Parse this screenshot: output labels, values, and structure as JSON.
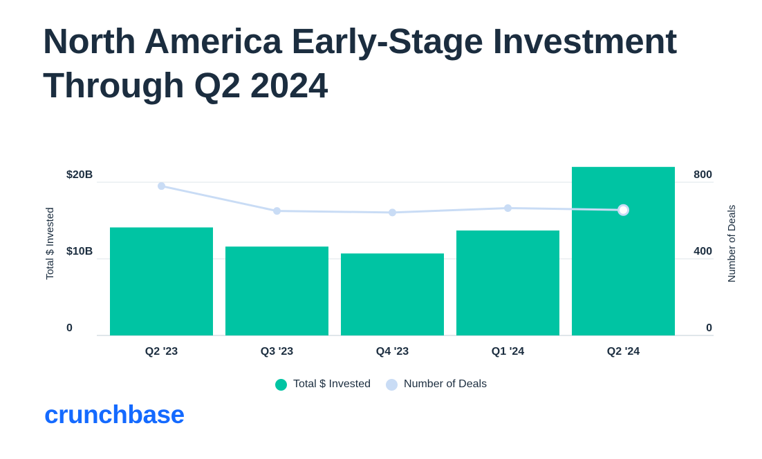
{
  "title_lines": [
    "North America Early-Stage Investment",
    "Through Q2 2024"
  ],
  "brand": "crunchbase",
  "colors": {
    "bars": "#00c4a3",
    "line": "#c9dcf5",
    "text": "#1b2d3f",
    "grid": "#e4e9ee",
    "brand": "#146aff"
  },
  "chart_data": {
    "type": "bar",
    "categories": [
      "Q2 '23",
      "Q3 '23",
      "Q4 '23",
      "Q1 '24",
      "Q2 '24"
    ],
    "series": [
      {
        "name": "Total $ Invested",
        "axis": "left",
        "type": "bar",
        "values": [
          14.1,
          11.6,
          10.7,
          13.7,
          22.0
        ]
      },
      {
        "name": "Number of Deals",
        "axis": "right",
        "type": "line",
        "values": [
          780,
          650,
          642,
          665,
          655
        ]
      }
    ],
    "left_axis": {
      "label": "Total $ Invested",
      "range": [
        0,
        20
      ],
      "ticks": [
        {
          "value": 0,
          "label": "0"
        },
        {
          "value": 10,
          "label": "$10B"
        },
        {
          "value": 20,
          "label": "$20B"
        }
      ]
    },
    "right_axis": {
      "label": "Number of Deals",
      "range": [
        0,
        800
      ],
      "ticks": [
        {
          "value": 0,
          "label": "0"
        },
        {
          "value": 400,
          "label": "400"
        },
        {
          "value": 800,
          "label": "800"
        }
      ]
    },
    "legend": [
      {
        "name": "Total $ Invested",
        "color": "#00c4a3"
      },
      {
        "name": "Number of Deals",
        "color": "#c9dcf5"
      }
    ],
    "grid": true,
    "highlight_last_point": true
  }
}
